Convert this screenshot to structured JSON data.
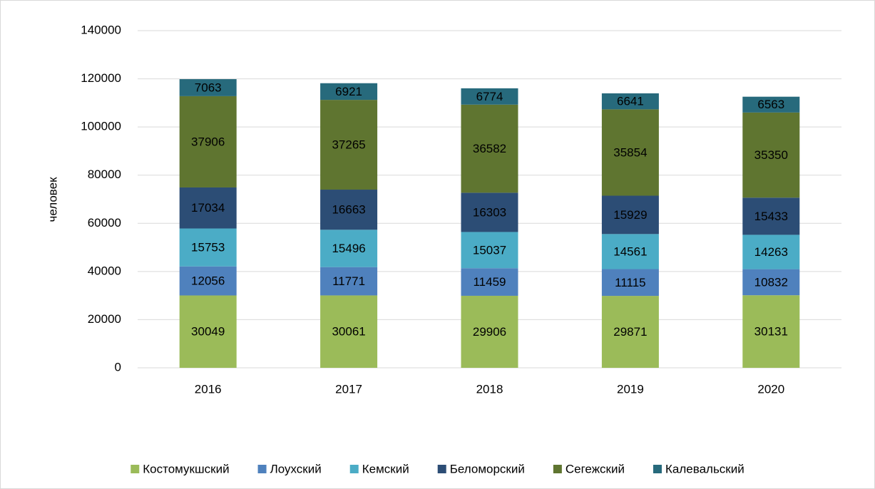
{
  "chart_data": {
    "type": "stacked_bar",
    "y_label": "человек",
    "categories": [
      "2016",
      "2017",
      "2018",
      "2019",
      "2020"
    ],
    "series": [
      {
        "name": "Костомукшский",
        "color": "#9bbb59",
        "values": [
          30049,
          30061,
          29906,
          29871,
          30131
        ]
      },
      {
        "name": "Лоухский",
        "color": "#4f81bd",
        "values": [
          12056,
          11771,
          11459,
          11115,
          10832
        ]
      },
      {
        "name": "Кемский",
        "color": "#4bacc6",
        "values": [
          15753,
          15496,
          15037,
          14561,
          14263
        ]
      },
      {
        "name": "Беломорский",
        "color": "#2c4d75",
        "values": [
          17034,
          16663,
          16303,
          15929,
          15433
        ]
      },
      {
        "name": "Сегежский",
        "color": "#5f7530",
        "values": [
          37906,
          37265,
          36582,
          35854,
          35350
        ]
      },
      {
        "name": "Калевальский",
        "color": "#276a7c",
        "values": [
          7063,
          6921,
          6774,
          6641,
          6563
        ]
      }
    ],
    "ylim": [
      0,
      140000
    ],
    "yticks": [
      0,
      20000,
      40000,
      60000,
      80000,
      100000,
      120000,
      140000
    ],
    "grid": true,
    "legend": "bottom"
  }
}
